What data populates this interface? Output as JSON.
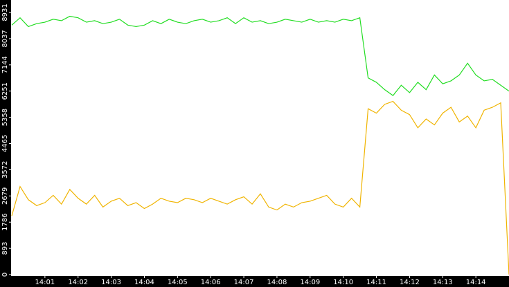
{
  "chart_data": {
    "type": "line",
    "x": [
      0,
      0.25,
      0.5,
      0.75,
      1,
      1.25,
      1.5,
      1.75,
      2,
      2.25,
      2.5,
      2.75,
      3,
      3.25,
      3.5,
      3.75,
      4,
      4.25,
      4.5,
      4.75,
      5,
      5.25,
      5.5,
      5.75,
      6,
      6.25,
      6.5,
      6.75,
      7,
      7.25,
      7.5,
      7.75,
      8,
      8.25,
      8.5,
      8.75,
      9,
      9.25,
      9.5,
      9.75,
      10,
      10.25,
      10.5,
      10.75,
      11,
      11.25,
      11.5,
      11.75,
      12,
      12.25,
      12.5,
      12.75,
      13,
      13.25,
      13.5,
      13.75,
      14,
      14.25,
      14.5,
      14.75,
      15
    ],
    "series": [
      {
        "color": "#22dd22",
        "values": [
          8500,
          8750,
          8450,
          8550,
          8600,
          8700,
          8650,
          8800,
          8750,
          8600,
          8650,
          8550,
          8600,
          8700,
          8500,
          8450,
          8500,
          8650,
          8550,
          8700,
          8600,
          8550,
          8650,
          8700,
          8600,
          8650,
          8750,
          8550,
          8750,
          8600,
          8650,
          8550,
          8600,
          8700,
          8650,
          8600,
          8700,
          8600,
          8650,
          8600,
          8700,
          8650,
          8750,
          6700,
          6550,
          6300,
          6100,
          6450,
          6200,
          6550,
          6300,
          6800,
          6500,
          6600,
          6800,
          7200,
          6800,
          6600,
          6650,
          6450,
          6250
        ]
      },
      {
        "color": "#f0b400",
        "values": [
          2000,
          3000,
          2550,
          2350,
          2450,
          2700,
          2400,
          2900,
          2600,
          2400,
          2700,
          2300,
          2500,
          2600,
          2350,
          2450,
          2250,
          2400,
          2600,
          2500,
          2450,
          2600,
          2550,
          2450,
          2600,
          2500,
          2400,
          2550,
          2650,
          2400,
          2750,
          2300,
          2200,
          2400,
          2300,
          2450,
          2500,
          2600,
          2700,
          2400,
          2300,
          2600,
          2300,
          5650,
          5500,
          5800,
          5900,
          5600,
          5450,
          5000,
          5300,
          5100,
          5500,
          5700,
          5200,
          5400,
          5000,
          5600,
          5700,
          5850,
          0
        ]
      }
    ],
    "xlim": [
      0,
      15
    ],
    "xticks": [
      {
        "value": 1,
        "label": "14:01"
      },
      {
        "value": 2,
        "label": "14:02"
      },
      {
        "value": 3,
        "label": "14:03"
      },
      {
        "value": 4,
        "label": "14:04"
      },
      {
        "value": 5,
        "label": "14:05"
      },
      {
        "value": 6,
        "label": "14:06"
      },
      {
        "value": 7,
        "label": "14:07"
      },
      {
        "value": 8,
        "label": "14:08"
      },
      {
        "value": 9,
        "label": "14:09"
      },
      {
        "value": 10,
        "label": "14:10"
      },
      {
        "value": 11,
        "label": "14:11"
      },
      {
        "value": 12,
        "label": "14:12"
      },
      {
        "value": 13,
        "label": "14:13"
      },
      {
        "value": 14,
        "label": "14:14"
      }
    ],
    "ylim": [
      0,
      9355
    ],
    "yticks": [
      0,
      893,
      1786,
      2679,
      3572,
      4465,
      5358,
      6251,
      7144,
      8037,
      8931
    ]
  }
}
